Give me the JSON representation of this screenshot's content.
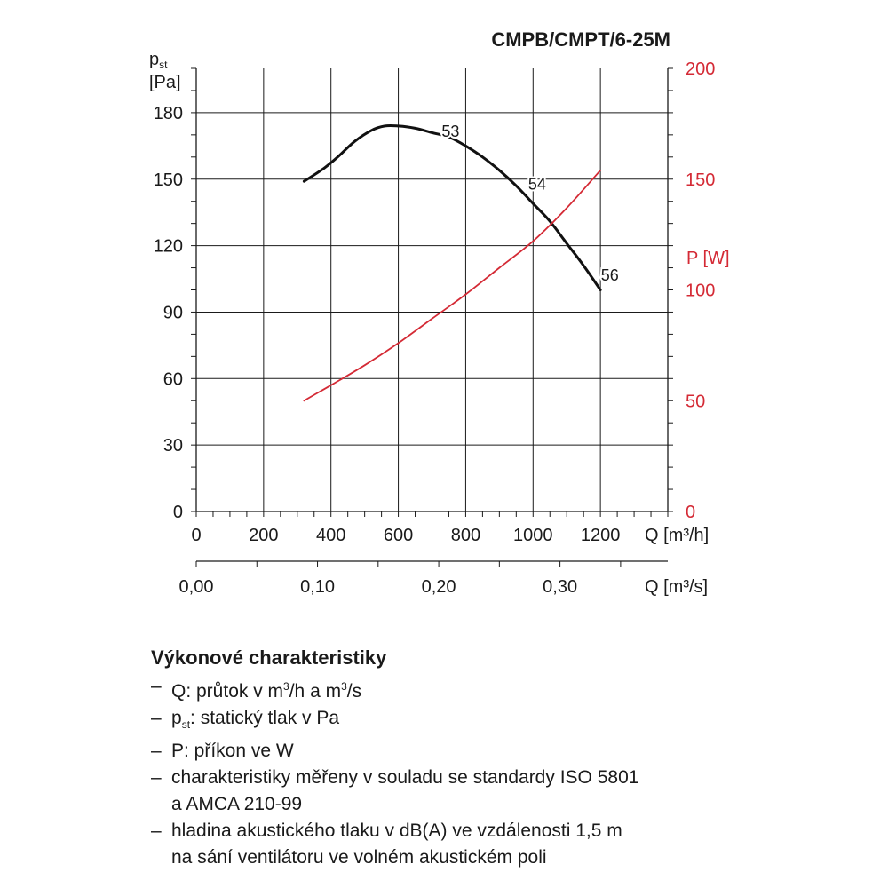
{
  "chart_data": {
    "type": "line",
    "title": "CMPB/CMPT/6-25M",
    "ylabel_left": "p",
    "ylabel_left_sub": "st",
    "ylabel_left_unit": "[Pa]",
    "ylabel_right": "P [W]",
    "xlabel_top": "Q [m³/h]",
    "xlabel_bottom": "Q [m³/s]",
    "ylim_left": [
      0,
      200
    ],
    "ylim_right": [
      0,
      200
    ],
    "xlim": [
      0,
      1400
    ],
    "xlim_secondary": [
      0,
      0.3889
    ],
    "y_ticks_left": [
      0,
      30,
      60,
      90,
      120,
      150,
      180
    ],
    "y_ticks_right": [
      0,
      50,
      100,
      150,
      200
    ],
    "x_ticks": [
      0,
      200,
      400,
      600,
      800,
      1000,
      1200
    ],
    "x_ticks_secondary": [
      "0,00",
      "0,10",
      "0,20",
      "0,30"
    ],
    "x_ticks_secondary_values": [
      0,
      0.1,
      0.2,
      0.3
    ],
    "grid": true,
    "series": [
      {
        "axis": "left",
        "color": "#111111",
        "x": [
          320,
          380,
          420,
          470,
          520,
          560,
          600,
          650,
          700,
          750,
          800,
          850,
          900,
          950,
          1000,
          1050,
          1100,
          1150,
          1200
        ],
        "values": [
          149,
          155,
          160,
          167,
          172,
          174,
          174,
          173,
          171,
          169,
          165,
          160,
          154,
          147,
          139,
          131,
          121,
          111,
          100
        ]
      },
      {
        "axis": "right",
        "color": "#d42a35",
        "x": [
          320,
          400,
          500,
          600,
          700,
          800,
          900,
          1000,
          1100,
          1200
        ],
        "values": [
          50,
          57,
          66,
          76,
          87,
          98,
          110,
          122,
          137,
          154
        ]
      }
    ],
    "annotations": [
      {
        "text": "53",
        "x": 755,
        "y": 172
      },
      {
        "text": "54",
        "x": 1012,
        "y": 148
      },
      {
        "text": "56",
        "x": 1228,
        "y": 107
      }
    ]
  },
  "legend": {
    "heading": "Výkonové charakteristiky",
    "dash": "–",
    "items": [
      {
        "pre": "Q: průtok v m",
        "sup": "3",
        "post": "/h a m",
        "sup2": "3",
        "post2": "/s"
      },
      {
        "pre": "p",
        "sub": "st",
        "post": ": statický tlak v Pa"
      },
      {
        "pre": "P: příkon ve W"
      },
      {
        "pre": "charakteristiky měřeny v souladu se standardy ISO 5801",
        "line2": "a AMCA 210-99"
      },
      {
        "pre": "hladina akustického tlaku v dB(A) ve vzdálenosti 1,5 m",
        "line2": "na sání ventilátoru ve volném akustickém poli"
      }
    ]
  }
}
